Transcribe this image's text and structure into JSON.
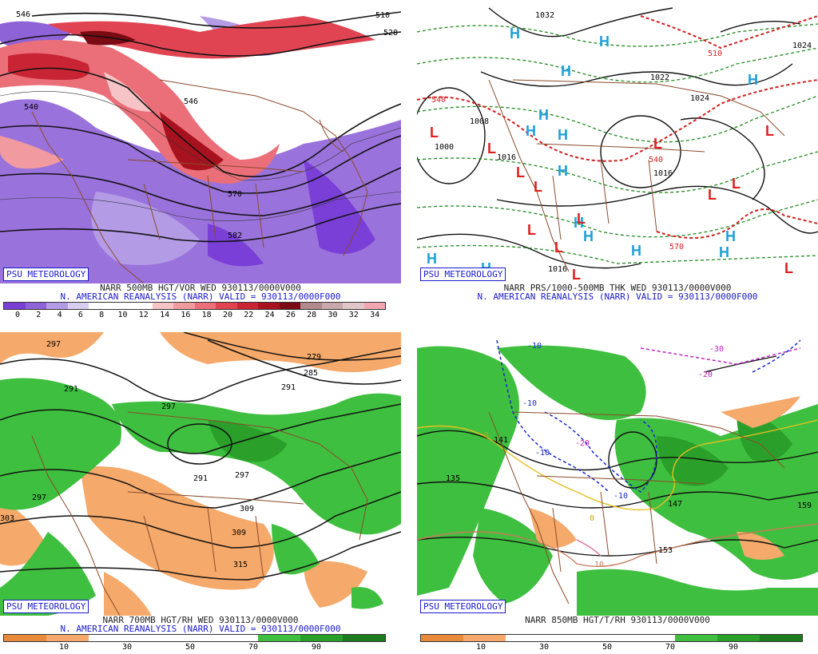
{
  "panels": {
    "p1": {
      "badge": "PSU METEOROLOGY",
      "caption1": "NARR 500MB HGT/VOR WED 930113/0000V000",
      "caption2": "N. AMERICAN REANALYSIS (NARR) VALID = 930113/0000F000",
      "ticks": [
        "0",
        "2",
        "4",
        "6",
        "8",
        "10",
        "12",
        "14",
        "16",
        "18",
        "20",
        "22",
        "24",
        "26",
        "28",
        "30",
        "32",
        "34"
      ],
      "contour_labels": [
        "546",
        "540",
        "546",
        "570",
        "582",
        "510",
        "528",
        "546"
      ],
      "colorbar": [
        "#7a3fd6",
        "#8f63d8",
        "#b39be6",
        "#d9cdf2",
        "#ffffff",
        "#ffffff",
        "#ffffff",
        "#f6c3c6",
        "#f19aa0",
        "#ea6f78",
        "#e04452",
        "#c92433",
        "#a8121f",
        "#7a0a14",
        "#b08a8c",
        "#c8a8aa",
        "#e0c6c8",
        "#f2a6b0"
      ]
    },
    "p2": {
      "badge": "PSU METEOROLOGY",
      "caption1": "NARR PRS/1000-500MB THK WED 930113/0000V000",
      "caption2": "N. AMERICAN REANALYSIS (NARR) VALID = 930113/0000F000",
      "contour_labels": [
        "1032",
        "1024",
        "1022",
        "1024",
        "1008",
        "1000",
        "1016",
        "1016",
        "1016",
        "1000",
        "540",
        "510",
        "540",
        "570"
      ],
      "highs_glyph": "H",
      "lows_glyph": "L"
    },
    "p3": {
      "badge": "PSU METEOROLOGY",
      "caption1": "NARR 700MB HGT/RH WED 930113/0000V000",
      "caption2": "N. AMERICAN REANALYSIS (NARR) VALID = 930113/0000F000",
      "ticks": [
        "10",
        "30",
        "50",
        "70",
        "90"
      ],
      "contour_labels": [
        "297",
        "279",
        "285",
        "291",
        "291",
        "297",
        "297",
        "291",
        "303",
        "309",
        "297",
        "303",
        "315",
        "309"
      ]
    },
    "p4": {
      "badge": "PSU METEOROLOGY",
      "caption1": "NARR 850MB HGT/T/RH 930113/0000V000",
      "ticks": [
        "10",
        "30",
        "50",
        "70",
        "90"
      ],
      "contour_labels": [
        "135",
        "141",
        "153",
        "147",
        "159"
      ],
      "temp_labels": [
        "-10",
        "-10",
        "-10",
        "-20",
        "-10",
        "-30",
        "-20",
        "0",
        "10",
        "0"
      ]
    }
  },
  "rh_colorbar": [
    "#e88a3a",
    "#f5a96a",
    "#ffffff",
    "#ffffff",
    "#ffffff",
    "#ffffff",
    "#3fbf3f",
    "#2aa02a",
    "#1d7a1d"
  ]
}
